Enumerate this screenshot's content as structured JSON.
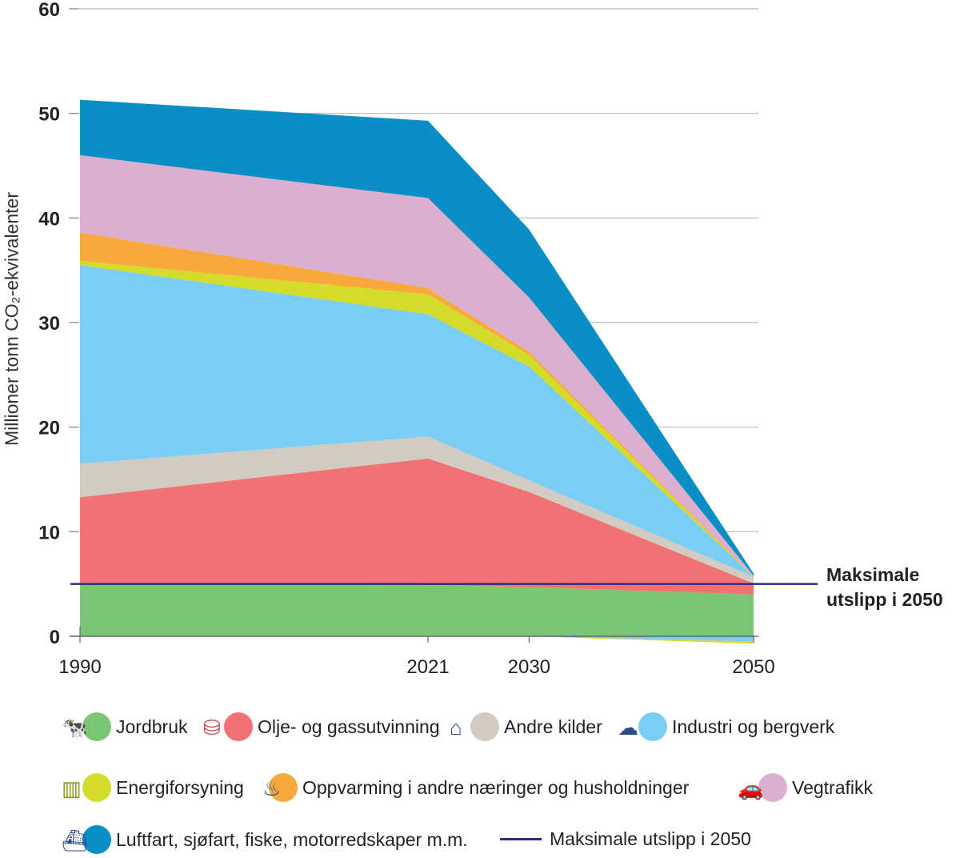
{
  "chart_data": {
    "type": "area",
    "stacked": true,
    "title": "",
    "ylabel": "Millioner tonn CO₂-ekvivalenter",
    "xlabel": "",
    "x": [
      1990,
      2021,
      2030,
      2050
    ],
    "x_tick_labels": [
      "1990",
      "2021",
      "2030",
      "2050"
    ],
    "ylim": [
      0,
      60
    ],
    "y_ticks": [
      0,
      10,
      20,
      30,
      40,
      50,
      60
    ],
    "y_tick_labels": [
      "0",
      "10",
      "20",
      "30",
      "40",
      "50",
      "60"
    ],
    "grid": "horizontal",
    "series": [
      {
        "name": "Jordbruk",
        "color": "#7bc576",
        "icon": "cow-icon",
        "values": [
          5.1,
          4.9,
          4.7,
          4.0
        ]
      },
      {
        "name": "Olje- og gassutvinning",
        "color": "#f07274",
        "icon": "oil-barrel-icon",
        "values": [
          8.2,
          12.1,
          9.1,
          1.05
        ]
      },
      {
        "name": "Andre kilder",
        "color": "#d2cbc2",
        "icon": "house-smoke-icon",
        "values": [
          3.2,
          2.1,
          1.1,
          0.65
        ]
      },
      {
        "name": "Industri og bergverk",
        "color": "#7acdf3",
        "icon": "factory-smoke-icon",
        "values": [
          19.0,
          11.7,
          10.9,
          -0.5
        ]
      },
      {
        "name": "Energiforsyning",
        "color": "#d4dc2a",
        "icon": "power-plant-icon",
        "values": [
          0.4,
          1.9,
          1.1,
          -0.2
        ]
      },
      {
        "name": "Oppvarming i andre næringer og husholdninger",
        "color": "#f7a93b",
        "icon": "stove-icon",
        "values": [
          2.7,
          0.6,
          0.3,
          0.05
        ]
      },
      {
        "name": "Vegtrafikk",
        "color": "#dbafcd",
        "icon": "car-icon",
        "values": [
          7.4,
          8.6,
          5.2,
          0.05
        ]
      },
      {
        "name": "Luftfart, sjøfart, fiske, motorredskaper m.m.",
        "color": "#0a8ec6",
        "icon": "ship-plane-icon",
        "values": [
          5.3,
          7.4,
          6.5,
          0.2
        ]
      }
    ],
    "reference_line": {
      "name": "Maksimale utslipp i 2050",
      "value": 5.0,
      "color": "#2b2b8a"
    },
    "annotations": [
      "Maksimale",
      "utslipp i 2050"
    ],
    "legend_position": "bottom"
  }
}
